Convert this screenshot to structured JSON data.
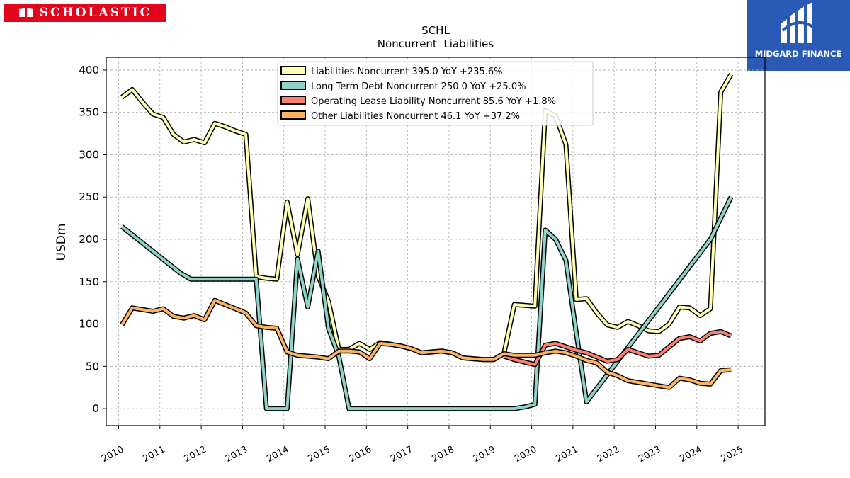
{
  "brand_left": {
    "name": "SCHOLASTIC",
    "color": "#e3051b"
  },
  "brand_right": {
    "name": "MIDGARD FINANCE",
    "color": "#2a5ab5"
  },
  "chart_data": {
    "type": "line",
    "title": "SCHL",
    "subtitle": "Noncurrent  Liabilities",
    "ylabel": "USDm",
    "xlabel": "",
    "ylim": [
      -20,
      415
    ],
    "xlim": [
      2009.7,
      2025.65
    ],
    "yticks": [
      0,
      50,
      100,
      150,
      200,
      250,
      300,
      350,
      400
    ],
    "xticks": [
      "2010",
      "2011",
      "2012",
      "2013",
      "2014",
      "2015",
      "2016",
      "2017",
      "2018",
      "2019",
      "2020",
      "2021",
      "2022",
      "2023",
      "2024",
      "2025"
    ],
    "grid": true,
    "legend_position": "top-center",
    "series": [
      {
        "name": "Liabilities Noncurrent  395.0 YoY +235.6%",
        "color": "#ffffb3",
        "points": [
          [
            2010.08,
            368
          ],
          [
            2010.33,
            377
          ],
          [
            2010.58,
            362
          ],
          [
            2010.83,
            348
          ],
          [
            2011.08,
            344
          ],
          [
            2011.33,
            324
          ],
          [
            2011.58,
            315
          ],
          [
            2011.83,
            318
          ],
          [
            2012.08,
            314
          ],
          [
            2012.33,
            337
          ],
          [
            2012.58,
            333
          ],
          [
            2012.83,
            328
          ],
          [
            2013.08,
            324
          ],
          [
            2013.33,
            156
          ],
          [
            2013.58,
            154
          ],
          [
            2013.83,
            153
          ],
          [
            2014.08,
            244
          ],
          [
            2014.33,
            182
          ],
          [
            2014.58,
            248
          ],
          [
            2014.83,
            157
          ],
          [
            2015.08,
            127
          ],
          [
            2015.33,
            70
          ],
          [
            2015.58,
            70
          ],
          [
            2015.83,
            77
          ],
          [
            2016.08,
            70
          ],
          [
            2016.33,
            78
          ],
          [
            2016.58,
            76
          ],
          [
            2016.83,
            74
          ],
          [
            2017.08,
            71
          ],
          [
            2017.33,
            66
          ],
          [
            2017.58,
            67
          ],
          [
            2017.83,
            68
          ],
          [
            2018.08,
            66
          ],
          [
            2018.33,
            60
          ],
          [
            2018.58,
            59
          ],
          [
            2018.83,
            58
          ],
          [
            2019.08,
            58
          ],
          [
            2019.33,
            65
          ],
          [
            2019.58,
            123
          ],
          [
            2019.83,
            122
          ],
          [
            2020.08,
            121
          ],
          [
            2020.33,
            352
          ],
          [
            2020.58,
            346
          ],
          [
            2020.83,
            312
          ],
          [
            2021.08,
            129
          ],
          [
            2021.33,
            130
          ],
          [
            2021.58,
            113
          ],
          [
            2021.83,
            99
          ],
          [
            2022.08,
            96
          ],
          [
            2022.33,
            103
          ],
          [
            2022.58,
            98
          ],
          [
            2022.83,
            92
          ],
          [
            2023.08,
            91
          ],
          [
            2023.33,
            100
          ],
          [
            2023.58,
            120
          ],
          [
            2023.83,
            119
          ],
          [
            2024.08,
            110
          ],
          [
            2024.33,
            118
          ],
          [
            2024.58,
            374
          ],
          [
            2024.83,
            395
          ]
        ]
      },
      {
        "name": "Long Term Debt Noncurrent  250.0 YoY +25.0%",
        "color": "#8dd3c7",
        "points": [
          [
            2010.08,
            215
          ],
          [
            2011.5,
            160
          ],
          [
            2011.75,
            153
          ],
          [
            2013.33,
            153
          ],
          [
            2013.58,
            0
          ],
          [
            2013.83,
            0
          ],
          [
            2014.08,
            0
          ],
          [
            2014.33,
            177
          ],
          [
            2014.58,
            120
          ],
          [
            2014.83,
            186
          ],
          [
            2015.08,
            95
          ],
          [
            2015.33,
            62
          ],
          [
            2015.58,
            0
          ],
          [
            2019.58,
            0
          ],
          [
            2019.83,
            2
          ],
          [
            2020.08,
            5
          ],
          [
            2020.33,
            211
          ],
          [
            2020.58,
            200
          ],
          [
            2020.83,
            175
          ],
          [
            2021.08,
            90
          ],
          [
            2021.33,
            8
          ],
          [
            2024.33,
            200
          ],
          [
            2024.83,
            250
          ]
        ]
      },
      {
        "name": "Operating Lease Liability Noncurrent  85.6 YoY +1.8%",
        "color": "#fb8072",
        "points": [
          [
            2019.33,
            62
          ],
          [
            2019.58,
            58
          ],
          [
            2019.83,
            55
          ],
          [
            2020.08,
            52
          ],
          [
            2020.33,
            75
          ],
          [
            2020.58,
            77
          ],
          [
            2020.83,
            73
          ],
          [
            2021.08,
            69
          ],
          [
            2021.33,
            66
          ],
          [
            2021.58,
            61
          ],
          [
            2021.83,
            56
          ],
          [
            2022.08,
            58
          ],
          [
            2022.33,
            70
          ],
          [
            2022.58,
            66
          ],
          [
            2022.83,
            62
          ],
          [
            2023.08,
            63
          ],
          [
            2023.33,
            73
          ],
          [
            2023.58,
            83
          ],
          [
            2023.83,
            85
          ],
          [
            2024.08,
            80
          ],
          [
            2024.33,
            89
          ],
          [
            2024.58,
            91
          ],
          [
            2024.83,
            86
          ]
        ]
      },
      {
        "name": "Other Liabilities Noncurrent  46.1 YoY +37.2%",
        "color": "#fdb462",
        "points": [
          [
            2010.08,
            99
          ],
          [
            2010.33,
            119
          ],
          [
            2010.58,
            117
          ],
          [
            2010.83,
            115
          ],
          [
            2011.08,
            118
          ],
          [
            2011.33,
            109
          ],
          [
            2011.58,
            107
          ],
          [
            2011.83,
            110
          ],
          [
            2012.08,
            105
          ],
          [
            2012.33,
            128
          ],
          [
            2012.58,
            123
          ],
          [
            2012.83,
            118
          ],
          [
            2013.08,
            113
          ],
          [
            2013.33,
            98
          ],
          [
            2013.58,
            96
          ],
          [
            2013.83,
            95
          ],
          [
            2014.08,
            67
          ],
          [
            2014.33,
            63
          ],
          [
            2014.58,
            62
          ],
          [
            2014.83,
            61
          ],
          [
            2015.08,
            59
          ],
          [
            2015.33,
            68
          ],
          [
            2015.58,
            68
          ],
          [
            2015.83,
            67
          ],
          [
            2016.08,
            59
          ],
          [
            2016.33,
            77
          ],
          [
            2016.58,
            76
          ],
          [
            2016.83,
            74
          ],
          [
            2017.08,
            71
          ],
          [
            2017.33,
            66
          ],
          [
            2017.58,
            67
          ],
          [
            2017.83,
            68
          ],
          [
            2018.08,
            66
          ],
          [
            2018.33,
            60
          ],
          [
            2018.58,
            59
          ],
          [
            2018.83,
            58
          ],
          [
            2019.08,
            58
          ],
          [
            2019.33,
            65
          ],
          [
            2019.58,
            63
          ],
          [
            2019.83,
            63
          ],
          [
            2020.08,
            63
          ],
          [
            2020.33,
            66
          ],
          [
            2020.58,
            68
          ],
          [
            2020.83,
            66
          ],
          [
            2021.08,
            62
          ],
          [
            2021.33,
            57
          ],
          [
            2021.58,
            54
          ],
          [
            2021.83,
            43
          ],
          [
            2022.08,
            39
          ],
          [
            2022.33,
            33
          ],
          [
            2022.58,
            31
          ],
          [
            2022.83,
            29
          ],
          [
            2023.08,
            27
          ],
          [
            2023.33,
            25
          ],
          [
            2023.58,
            36
          ],
          [
            2023.83,
            34
          ],
          [
            2024.08,
            30
          ],
          [
            2024.33,
            29
          ],
          [
            2024.58,
            45
          ],
          [
            2024.83,
            46
          ]
        ]
      }
    ]
  }
}
